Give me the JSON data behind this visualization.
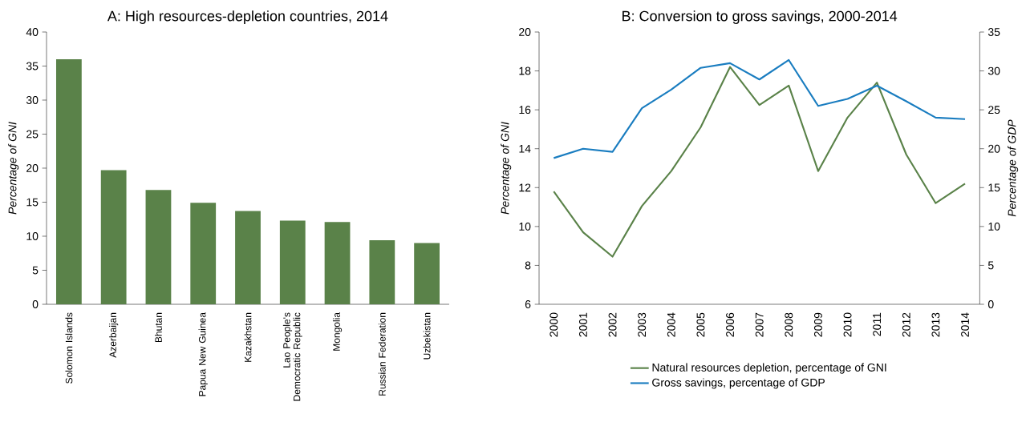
{
  "chart_data": [
    {
      "type": "bar",
      "title": "A: High resources-depletion countries, 2014",
      "ylabel": "Percentage of GNI",
      "categories": [
        "Solomon Islands",
        "Azerbaijan",
        "Bhutan",
        "Papua New Guinea",
        "Kazakhstan",
        "Lao People's Democratic Republic",
        "Mongolia",
        "Russian Federation",
        "Uzbekistan"
      ],
      "values": [
        36,
        19.7,
        16.8,
        14.9,
        13.7,
        12.3,
        12.1,
        9.4,
        9.0
      ],
      "color": "#5a8249",
      "ylim": [
        0,
        40
      ],
      "yticks": [
        0,
        5,
        10,
        15,
        20,
        25,
        30,
        35,
        40
      ]
    },
    {
      "type": "line",
      "title": "B: Conversion to gross savings, 2000-2014",
      "ylabel": "Percentage of GNI",
      "y2label": "Percentage of GDP",
      "categories": [
        "2000",
        "2001",
        "2002",
        "2003",
        "2004",
        "2005",
        "2006",
        "2007",
        "2008",
        "2009",
        "2010",
        "2011",
        "2012",
        "2013",
        "2014"
      ],
      "series": [
        {
          "name": "Natural resources depletion, percentage of GNI",
          "color": "#5a8249",
          "values": [
            11.8,
            9.7,
            8.45,
            11.05,
            12.85,
            15.1,
            18.2,
            16.25,
            17.25,
            12.85,
            15.6,
            17.4,
            13.7,
            11.2,
            12.2
          ]
        },
        {
          "name": "Gross savings, percentage of GDP",
          "color": "#1a7dc0",
          "axis": "y2",
          "values": [
            18.8,
            20,
            19.6,
            25.2,
            27.6,
            30.4,
            31,
            28.9,
            31.4,
            25.5,
            26.4,
            28.1,
            26.1,
            24,
            23.8
          ]
        }
      ],
      "ylim": [
        6,
        20
      ],
      "yticks": [
        6,
        8,
        10,
        12,
        14,
        16,
        18,
        20
      ],
      "y2lim": [
        0,
        35
      ],
      "y2ticks": [
        0,
        5,
        10,
        15,
        20,
        25,
        30,
        35
      ],
      "legend": "bottom"
    }
  ]
}
